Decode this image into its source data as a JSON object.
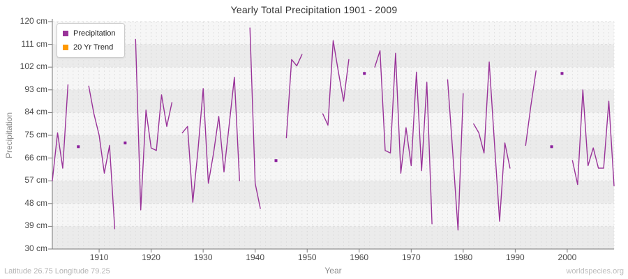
{
  "chart_data": {
    "type": "line",
    "title": "Yearly Total Precipitation 1901 - 2009",
    "xlabel": "Year",
    "ylabel": "Precipitation",
    "ylim": [
      30,
      120
    ],
    "xlim": [
      1901,
      2009
    ],
    "y_ticks": [
      120,
      111,
      102,
      93,
      84,
      75,
      66,
      57,
      48,
      39,
      30
    ],
    "y_tick_suffix": " cm",
    "x_ticks": [
      1910,
      1920,
      1930,
      1940,
      1950,
      1960,
      1970,
      1980,
      1990,
      2000
    ],
    "grid": "dashed-yearly-vertical-and-tick-horizontal",
    "legend_position": "top-left",
    "legend": [
      {
        "label": "Precipitation",
        "color": "#993399"
      },
      {
        "label": "20 Yr Trend",
        "color": "#ff9900"
      }
    ],
    "colors": {
      "line": "#993399",
      "marker": "#8b1f9c",
      "trend": "#ff9900",
      "band_light": "#f6f6f6",
      "band_dark": "#ebebeb",
      "grid": "#d9d9d9",
      "axis": "#777777"
    },
    "series": [
      {
        "name": "Precipitation",
        "start_year": 1901,
        "unit": "cm",
        "values": [
          57,
          76,
          62,
          95,
          null,
          70.5,
          null,
          94.5,
          83.5,
          75,
          60,
          71,
          38,
          null,
          72,
          null,
          113,
          45.5,
          85,
          70,
          69,
          91,
          78.5,
          88,
          null,
          76,
          78.5,
          48.5,
          69,
          93.5,
          56,
          68,
          82.5,
          60.5,
          79,
          98,
          57,
          null,
          117.5,
          56,
          46,
          null,
          null,
          65,
          null,
          74,
          105,
          102.5,
          107,
          null,
          null,
          null,
          83.5,
          79,
          112.5,
          100,
          88.5,
          105,
          null,
          null,
          99.5,
          null,
          102,
          108.5,
          69,
          68,
          107.5,
          60,
          78,
          63,
          100,
          61,
          96,
          40,
          null,
          null,
          97,
          68,
          37.5,
          91.5,
          null,
          79.5,
          76,
          68,
          104,
          72,
          41,
          72,
          62,
          null,
          null,
          71,
          86.5,
          100.5,
          null,
          null,
          70.5,
          null,
          99.5,
          null,
          65,
          55.5,
          93,
          63,
          70,
          62,
          62,
          88.5,
          55
        ]
      },
      {
        "name": "20 Yr Trend",
        "start_year": 1901,
        "unit": "cm",
        "values": []
      }
    ]
  },
  "footer": {
    "left": "Latitude 26.75 Longitude 79.25",
    "right": "worldspecies.org"
  }
}
